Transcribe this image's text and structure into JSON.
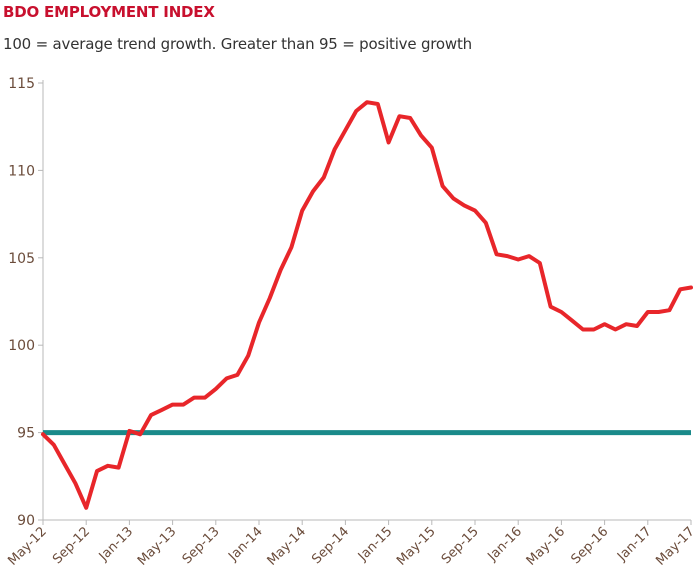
{
  "chart_data": {
    "type": "line",
    "title": "BDO EMPLOYMENT INDEX",
    "subtitle": "100 = average trend growth. Greater than 95 = positive growth",
    "xlabel": "",
    "ylabel": "",
    "ylim": [
      90,
      115
    ],
    "yticks": [
      "90",
      "95",
      "100",
      "105",
      "110",
      "115"
    ],
    "x_ticks": [
      "May-12",
      "Sep-12",
      "Jan-13",
      "May-13",
      "Sep-13",
      "Jan-14",
      "May-14",
      "Sep-14",
      "Jan-15",
      "May-15",
      "Sep-15",
      "Jan-16",
      "May-16",
      "Sep-16",
      "Jan-17",
      "May-17"
    ],
    "grid": false,
    "legend": "none",
    "colors": {
      "series": "#e8262a",
      "threshold": "#1a8a8a",
      "title": "#c8102e"
    },
    "threshold": {
      "value": 95
    },
    "series": [
      {
        "x": [
          "May-12",
          "Jun-12",
          "Jul-12",
          "Aug-12",
          "Sep-12",
          "Oct-12",
          "Nov-12",
          "Dec-12",
          "Jan-13",
          "Feb-13",
          "Mar-13",
          "Apr-13",
          "May-13",
          "Jun-13",
          "Jul-13",
          "Aug-13",
          "Sep-13",
          "Oct-13",
          "Nov-13",
          "Dec-13",
          "Jan-14",
          "Feb-14",
          "Mar-14",
          "Apr-14",
          "May-14",
          "Jun-14",
          "Jul-14",
          "Aug-14",
          "Sep-14",
          "Oct-14",
          "Nov-14",
          "Dec-14",
          "Jan-15",
          "Feb-15",
          "Mar-15",
          "Apr-15",
          "May-15",
          "Jun-15",
          "Jul-15",
          "Aug-15",
          "Sep-15",
          "Oct-15",
          "Nov-15",
          "Dec-15",
          "Jan-16",
          "Feb-16",
          "Mar-16",
          "Apr-16",
          "May-16",
          "Jun-16",
          "Jul-16",
          "Aug-16",
          "Sep-16",
          "Oct-16",
          "Nov-16",
          "Dec-16",
          "Jan-17",
          "Feb-17",
          "Mar-17",
          "Apr-17",
          "May-17"
        ],
        "values": [
          94.9,
          94.3,
          93.2,
          92.1,
          90.7,
          92.8,
          93.1,
          93.0,
          95.1,
          94.9,
          96.0,
          96.3,
          96.6,
          96.6,
          97.0,
          97.0,
          97.5,
          98.1,
          98.3,
          99.4,
          101.3,
          102.7,
          104.3,
          105.6,
          107.7,
          108.8,
          109.6,
          111.2,
          112.3,
          113.4,
          113.9,
          113.8,
          111.6,
          113.1,
          113.0,
          112.0,
          111.3,
          109.1,
          108.4,
          108.0,
          107.7,
          107.0,
          105.2,
          105.1,
          104.9,
          105.1,
          104.7,
          102.2,
          101.9,
          101.4,
          100.9,
          100.9,
          101.2,
          100.9,
          101.2,
          101.1,
          101.9,
          101.9,
          102.0,
          103.2,
          103.3
        ]
      }
    ]
  }
}
